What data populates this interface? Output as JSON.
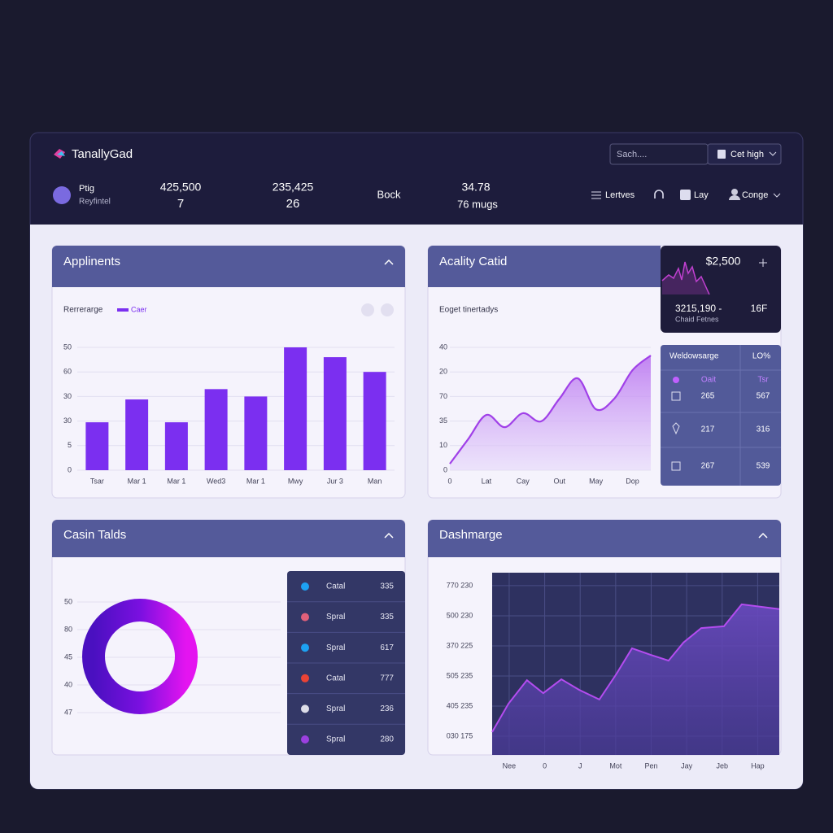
{
  "header": {
    "brand": "TanallyGad",
    "search": "Sach....",
    "button": "Cet high",
    "user": {
      "name": "Ptig",
      "role": "Reyfintel"
    },
    "stats": [
      {
        "value": "425,500",
        "sub": "7"
      },
      {
        "value": "235,425",
        "sub": "26"
      },
      {
        "value": "Bock"
      },
      {
        "value": "34.78",
        "sub": "76 mugs"
      }
    ],
    "nav": [
      "Lertves",
      "Lay",
      "Conge"
    ]
  },
  "panels": [
    {
      "title": "Applinents",
      "chart_data": {
        "type": "bar",
        "subtitle": "Rerrerarge",
        "categories": [
          "Tsar",
          "Mar 1",
          "Mar 1",
          "Wed3",
          "Mar 1",
          "Mwy",
          "Jur 3",
          "Man"
        ],
        "series": [
          {
            "name": "Caer",
            "color": "#7b2ff0",
            "values": [
              19.5,
              28.8,
              19.5,
              33,
              30,
              50,
              46,
              40
            ]
          }
        ],
        "ylim": [
          0,
          50
        ],
        "yticks": [
          50,
          {
            "value": 40,
            "label": "60"
          },
          30,
          {
            "value": 20,
            "label": "30"
          },
          {
            "value": 10,
            "label": "5"
          },
          0
        ],
        "grid": true
      }
    },
    {
      "title": "Acality Catid",
      "chart_data": {
        "type": "area",
        "subtitle": "Eoget tinertadys",
        "categories": [
          "0",
          null,
          "Lat",
          null,
          "Cay",
          null,
          "Out",
          null,
          "May",
          null,
          "Dop",
          null
        ],
        "values": [
          2.6,
          12.6,
          22.5,
          17.5,
          23.2,
          19.9,
          29.1,
          37.4,
          24.8,
          29.1,
          40.7,
          46.7
        ],
        "color": "#a040e8",
        "ylim": [
          0,
          50
        ],
        "yticks": [
          {
            "value": 50,
            "label": "40"
          },
          {
            "value": 40,
            "label": "20"
          },
          {
            "value": 30,
            "label": "70"
          },
          {
            "value": 20,
            "label": "35"
          },
          10,
          0
        ],
        "grid": true
      },
      "summary": {
        "amount": "$2,500",
        "value": "3215,190 -",
        "extra": "16F",
        "caption": "Chaid Fetnes"
      },
      "table": {
        "header": [
          "Weldowsarge",
          "LO%"
        ],
        "rows": [
          [
            "Oait",
            "Tsr"
          ],
          [
            "265",
            "567"
          ],
          [
            "217",
            "316"
          ],
          [
            "267",
            "539"
          ]
        ]
      }
    },
    {
      "title": "Casin Talds",
      "axis_labels": [
        "50",
        "80",
        "45",
        "40",
        "47"
      ],
      "table": {
        "rows": [
          {
            "name": "Catal",
            "value": "335"
          },
          {
            "name": "Spral",
            "value": "335"
          },
          {
            "name": "Spral",
            "value": "617"
          },
          {
            "name": "Catal",
            "value": "777"
          },
          {
            "name": "Spral",
            "value": "236"
          },
          {
            "name": "Spral",
            "value": "280"
          }
        ]
      }
    },
    {
      "title": "Dashmarge",
      "chart_data": {
        "type": "line",
        "x": [
          -0.48,
          -0.02,
          0.5,
          0.96,
          1.47,
          1.97,
          2.54,
          3.0,
          3.46,
          3.99,
          4.49,
          4.91,
          5.41,
          6.05,
          6.55,
          7.61
        ],
        "values": [
          0.14,
          1.08,
          1.86,
          1.43,
          1.89,
          1.54,
          1.22,
          2.03,
          2.92,
          2.7,
          2.51,
          3.11,
          3.59,
          3.65,
          4.38,
          4.22
        ],
        "color": "#b44cf0",
        "xlim": [
          -0.48,
          7.61
        ],
        "xticks": [
          {
            "value": 0,
            "label": "Nee"
          },
          {
            "value": 1,
            "label": "0"
          },
          {
            "value": 2,
            "label": "J"
          },
          {
            "value": 3,
            "label": "Mot"
          },
          {
            "value": 4,
            "label": "Pen"
          },
          {
            "value": 5,
            "label": "Jay"
          },
          {
            "value": 6,
            "label": "Jeb"
          },
          {
            "value": 7,
            "label": "Hap"
          }
        ],
        "ylim": [
          -0.62,
          5.43
        ],
        "yticks": [
          {
            "value": 5,
            "label": "770 230"
          },
          {
            "value": 4,
            "label": "500 230"
          },
          {
            "value": 3,
            "label": "370 225"
          },
          {
            "value": 2,
            "label": "505 235"
          },
          {
            "value": 1,
            "label": "405 235"
          },
          {
            "value": 0,
            "label": "030 175"
          }
        ],
        "grid": true
      }
    }
  ]
}
